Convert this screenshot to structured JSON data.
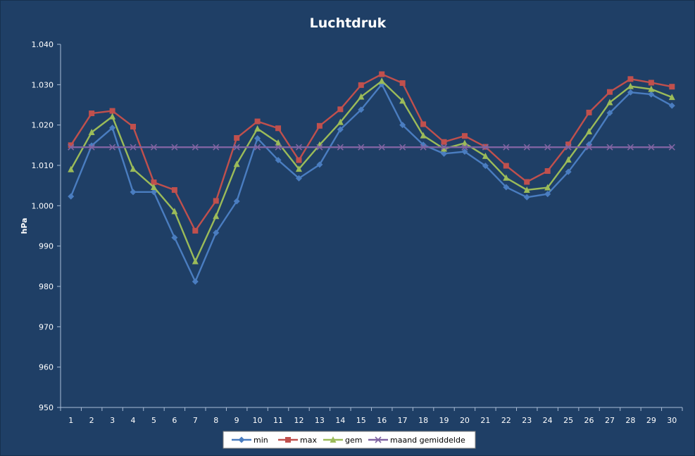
{
  "chart_data": {
    "type": "line",
    "title": "Luchtdruk",
    "ylabel": "hPa",
    "xlabel": "",
    "ylim": [
      950,
      1040
    ],
    "ytick_values": [
      950,
      960,
      970,
      980,
      990,
      1000,
      1010,
      1020,
      1030,
      1040
    ],
    "ytick_labels": [
      "950",
      "960",
      "970",
      "980",
      "990",
      "1.000",
      "1.010",
      "1.020",
      "1.030",
      "1.040"
    ],
    "categories": [
      "1",
      "2",
      "3",
      "4",
      "5",
      "6",
      "7",
      "8",
      "9",
      "10",
      "11",
      "12",
      "13",
      "14",
      "15",
      "16",
      "17",
      "18",
      "19",
      "20",
      "21",
      "22",
      "23",
      "24",
      "25",
      "26",
      "27",
      "28",
      "29",
      "30"
    ],
    "grid": false,
    "legend_position": "bottom",
    "series": [
      {
        "name": "min",
        "color": "#4a7dc0",
        "marker": "diamond",
        "values": [
          1002.3,
          1014.9,
          1019.3,
          1003.4,
          1003.4,
          992.1,
          981.2,
          993.3,
          1001.1,
          1016.7,
          1011.3,
          1006.8,
          1010.2,
          1018.9,
          1023.8,
          1030.1,
          1020.0,
          1015.1,
          1012.9,
          1013.4,
          1009.9,
          1004.6,
          1002.1,
          1002.9,
          1008.4,
          1015.2,
          1023.0,
          1028.1,
          1027.6,
          1024.8
        ]
      },
      {
        "name": "max",
        "color": "#c0504d",
        "marker": "square",
        "values": [
          1015.0,
          1022.9,
          1023.5,
          1019.6,
          1005.8,
          1003.9,
          993.8,
          1001.2,
          1016.8,
          1020.9,
          1019.2,
          1011.3,
          1019.8,
          1023.9,
          1029.9,
          1032.6,
          1030.4,
          1020.2,
          1015.8,
          1017.3,
          1014.6,
          1009.9,
          1005.9,
          1008.6,
          1015.2,
          1023.1,
          1028.2,
          1031.4,
          1030.5,
          1029.5
        ]
      },
      {
        "name": "gem",
        "color": "#9bbb59",
        "marker": "triangle",
        "values": [
          1009.0,
          1018.2,
          1022.1,
          1009.1,
          1004.6,
          998.6,
          986.2,
          997.4,
          1010.3,
          1019.1,
          1015.6,
          1009.1,
          1015.1,
          1020.7,
          1027.0,
          1030.9,
          1026.0,
          1017.4,
          1014.1,
          1015.5,
          1012.3,
          1006.9,
          1003.9,
          1004.5,
          1011.4,
          1018.4,
          1025.6,
          1029.6,
          1028.9,
          1026.9
        ]
      },
      {
        "name": "maand gemiddelde",
        "color": "#8064a2",
        "marker": "x",
        "values": [
          1014.5,
          1014.5,
          1014.5,
          1014.5,
          1014.5,
          1014.5,
          1014.5,
          1014.5,
          1014.5,
          1014.5,
          1014.5,
          1014.5,
          1014.5,
          1014.5,
          1014.5,
          1014.5,
          1014.5,
          1014.5,
          1014.5,
          1014.5,
          1014.5,
          1014.5,
          1014.5,
          1014.5,
          1014.5,
          1014.5,
          1014.5,
          1014.5,
          1014.5,
          1014.5
        ]
      }
    ]
  }
}
